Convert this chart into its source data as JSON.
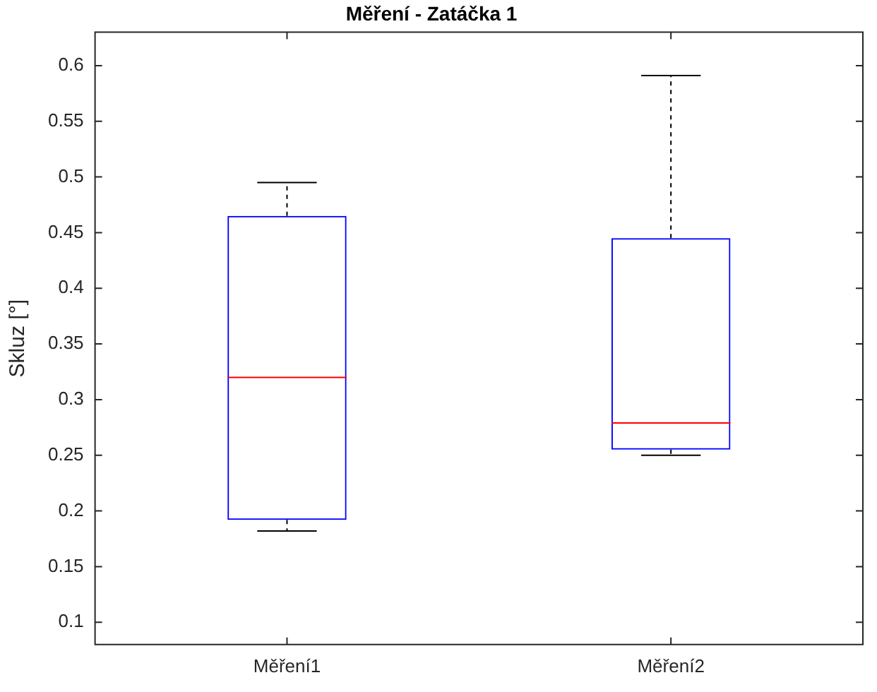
{
  "chart_data": {
    "type": "box",
    "title": "Měření - Zatáčka 1",
    "ylabel": "Skluz [°]",
    "categories": [
      "Měření1",
      "Měření2"
    ],
    "series": [
      {
        "color": "#0000ff",
        "boxes": [
          {
            "low": 0.182,
            "q1": 0.192,
            "median": 0.32,
            "q3": 0.465,
            "high": 0.495
          },
          {
            "low": 0.25,
            "q1": 0.255,
            "median": 0.279,
            "q3": 0.445,
            "high": 0.591
          }
        ]
      }
    ],
    "ylim": [
      0.08,
      0.63
    ],
    "yticks": [
      0.1,
      0.15,
      0.2,
      0.25,
      0.3,
      0.35,
      0.4,
      0.45,
      0.5,
      0.55,
      0.6
    ],
    "grid": false
  }
}
